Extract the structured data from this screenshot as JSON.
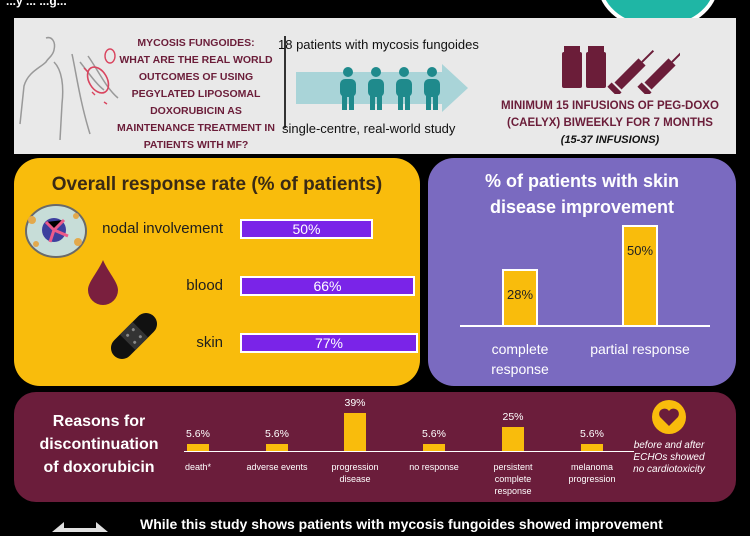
{
  "header": {
    "title_fragment": "...y ... ...g...",
    "accent_color": "#1fb6a5"
  },
  "info": {
    "question_lines": [
      "MYCOSIS FUNGOIDES:",
      "WHAT ARE THE REAL WORLD",
      "OUTCOMES OF USING",
      "PEGYLATED LIPOSOMAL",
      "DOXORUBICIN AS",
      "MAINTENANCE TREATMENT IN",
      "PATIENTS WITH MF?"
    ],
    "patients": "18 patients with mycosis fungoides",
    "study_type": "single-centre, real-world study",
    "infusion_line1": "MINIMUM 15 INFUSIONS OF PEG-DOXO",
    "infusion_line2": "(CAELYX) BIWEEKLY FOR 7 MONTHS",
    "infusion_range": "(15-37 INFUSIONS)"
  },
  "colors": {
    "orr_panel": "#f9bc0c",
    "orr_bar": "#7a24e8",
    "skin_panel": "#7a6ac0",
    "disc_panel": "#6b1d3b",
    "accent_yellow": "#f9bc0c"
  },
  "chart_data": [
    {
      "type": "bar",
      "orientation": "horizontal",
      "title": "Overall response rate (% of patients)",
      "categories": [
        "nodal involvement",
        "blood",
        "skin"
      ],
      "values": [
        50,
        66,
        77
      ],
      "value_labels": [
        "50%",
        "66%",
        "77%"
      ],
      "xlim": [
        0,
        100
      ]
    },
    {
      "type": "bar",
      "title_lines": [
        "% of patients with skin",
        "disease improvement"
      ],
      "categories": [
        "complete response",
        "partial response"
      ],
      "category_lines": [
        [
          "complete",
          "response"
        ],
        [
          "partial response"
        ]
      ],
      "values": [
        28,
        50
      ],
      "value_labels": [
        "28%",
        "50%"
      ],
      "ylim": [
        0,
        60
      ]
    },
    {
      "type": "bar",
      "title_lines": [
        "Reasons for",
        "discontinuation",
        "of doxorubicin"
      ],
      "categories": [
        "death*",
        "adverse events",
        "progression disease",
        "no response",
        "persistent complete response",
        "melanoma progression"
      ],
      "category_lines": [
        [
          "death*"
        ],
        [
          "adverse events"
        ],
        [
          "progression",
          "disease"
        ],
        [
          "no response"
        ],
        [
          "persistent",
          "complete",
          "response"
        ],
        [
          "melanoma",
          "progression"
        ]
      ],
      "values": [
        5.6,
        5.6,
        39,
        5.6,
        25,
        5.6
      ],
      "value_labels": [
        "5.6%",
        "5.6%",
        "39%",
        "5.6%",
        "25%",
        "5.6%"
      ],
      "ylim": [
        0,
        39
      ]
    }
  ],
  "cardio_note": "before and after ECHOs showed no cardiotoxicity",
  "cardio_note_lines": [
    "before and after",
    "ECHOs showed",
    "no cardiotoxicity"
  ],
  "conclusion": "While this study shows patients with mycosis fungoides showed improvement",
  "icons": [
    "body-outline-icon",
    "people-arrow-icon",
    "vials-icon",
    "syringe-icon",
    "lymph-node-icon",
    "blood-drop-icon",
    "bandage-icon",
    "heart-icon",
    "double-arrow-icon"
  ]
}
